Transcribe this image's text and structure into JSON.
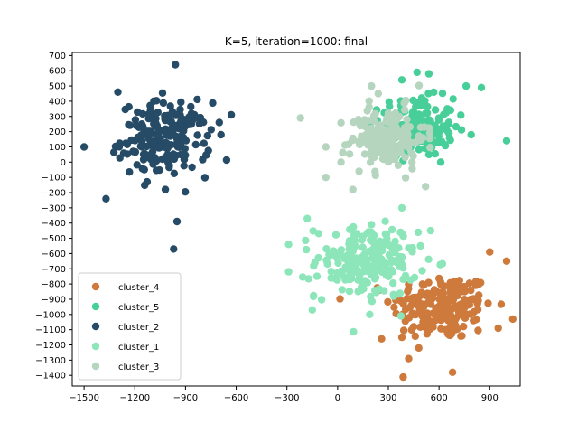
{
  "chart_data": {
    "type": "scatter",
    "title": "K=5, iteration=1000: final",
    "xlabel": "",
    "ylabel": "",
    "xlim": [
      -1570,
      1080
    ],
    "ylim": [
      -1470,
      720
    ],
    "xticks": [
      -1500,
      -1200,
      -900,
      -600,
      -300,
      0,
      300,
      600,
      900
    ],
    "yticks": [
      700,
      600,
      500,
      400,
      300,
      200,
      100,
      0,
      -100,
      -200,
      -300,
      -400,
      -500,
      -600,
      -700,
      -800,
      -900,
      -1000,
      -1100,
      -1200,
      -1300,
      -1400
    ],
    "grid": false,
    "legend": "lower-left",
    "series": [
      {
        "name": "cluster_4",
        "color": "#cd7a3c",
        "center": [
          620,
          -950
        ],
        "spread": [
          150,
          110
        ],
        "count": 190,
        "extremes": [
          [
            680,
            -1380
          ],
          [
            900,
            -590
          ],
          [
            1000,
            -650
          ],
          [
            420,
            -1290
          ],
          [
            380,
            -1150
          ],
          [
            260,
            -1160
          ],
          [
            950,
            -1090
          ],
          [
            480,
            -1220
          ]
        ]
      },
      {
        "name": "cluster_5",
        "color": "#48cf99",
        "center": [
          470,
          230
        ],
        "spread": [
          110,
          95
        ],
        "count": 170,
        "extremes": [
          [
            1000,
            140
          ],
          [
            850,
            490
          ],
          [
            760,
            500
          ],
          [
            470,
            590
          ],
          [
            540,
            580
          ],
          [
            380,
            540
          ],
          [
            790,
            180
          ],
          [
            610,
            0
          ]
        ]
      },
      {
        "name": "cluster_2",
        "color": "#264b66",
        "center": [
          -1020,
          150
        ],
        "spread": [
          130,
          120
        ],
        "count": 200,
        "extremes": [
          [
            -1500,
            100
          ],
          [
            -1370,
            -240
          ],
          [
            -960,
            640
          ],
          [
            -970,
            -570
          ],
          [
            -950,
            -390
          ],
          [
            -690,
            180
          ],
          [
            -700,
            260
          ],
          [
            -1300,
            460
          ]
        ]
      },
      {
        "name": "cluster_1",
        "color": "#8ce6b9",
        "center": [
          170,
          -650
        ],
        "spread": [
          150,
          120
        ],
        "count": 200,
        "extremes": [
          [
            -290,
            -540
          ],
          [
            -290,
            -720
          ],
          [
            -150,
            -970
          ],
          [
            -180,
            -370
          ],
          [
            190,
            -1000
          ],
          [
            490,
            -550
          ],
          [
            550,
            -450
          ],
          [
            380,
            -300
          ]
        ]
      },
      {
        "name": "cluster_3",
        "color": "#b5d5bf",
        "center": [
          300,
          160
        ],
        "spread": [
          110,
          100
        ],
        "count": 160,
        "extremes": [
          [
            -220,
            290
          ],
          [
            -70,
            100
          ],
          [
            -70,
            -100
          ],
          [
            90,
            -180
          ],
          [
            200,
            500
          ],
          [
            240,
            450
          ],
          [
            520,
            -160
          ],
          [
            20,
            0
          ]
        ]
      }
    ]
  }
}
